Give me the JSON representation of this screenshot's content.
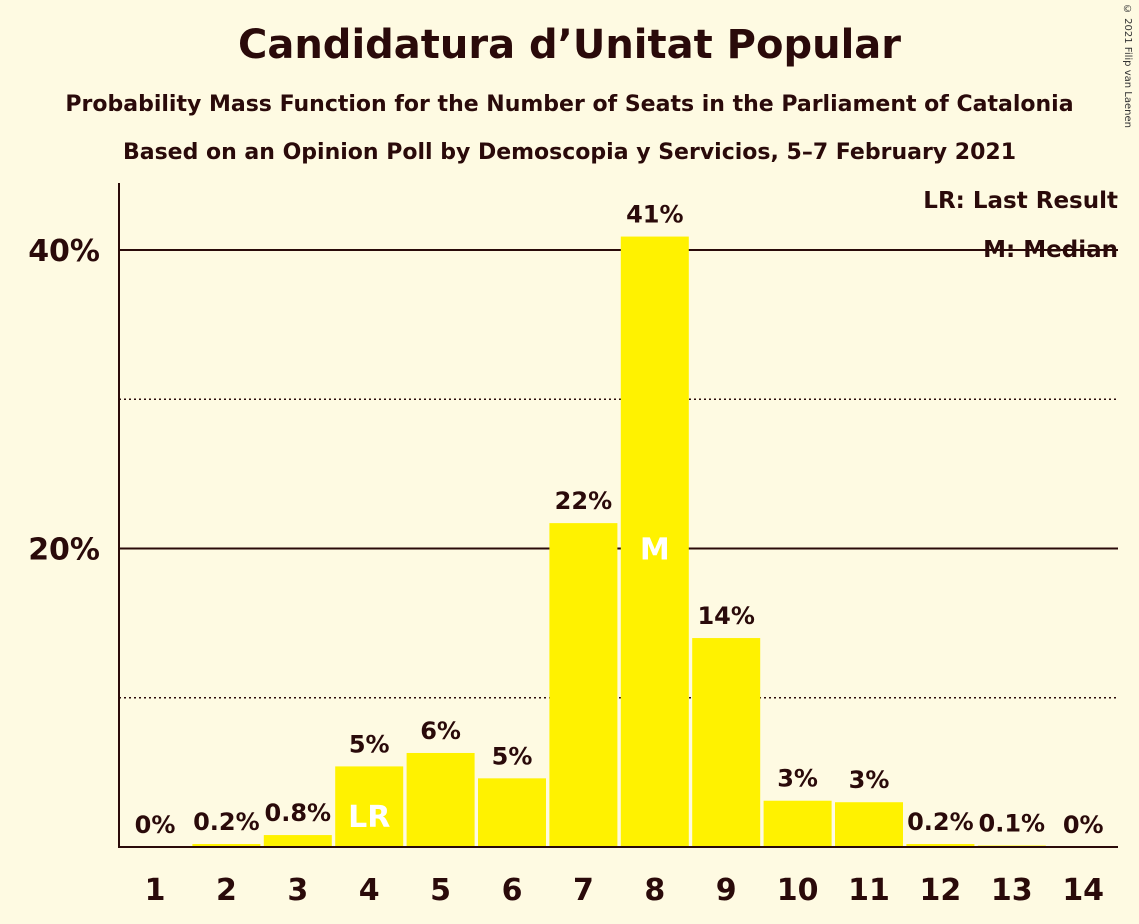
{
  "chart_data": {
    "type": "bar",
    "title": "Candidatura d’Unitat Popular",
    "subtitle": "Probability Mass Function for the Number of Seats in the Parliament of Catalonia",
    "subtitle2": "Based on an Opinion Poll by Demoscopia y Servicios, 5–7 February 2021",
    "copyright": "© 2021 Filip van Laenen",
    "categories": [
      "1",
      "2",
      "3",
      "4",
      "5",
      "6",
      "7",
      "8",
      "9",
      "10",
      "11",
      "12",
      "13",
      "14"
    ],
    "values": [
      0,
      0.2,
      0.8,
      5.4,
      6.3,
      4.6,
      21.7,
      40.9,
      14.0,
      3.1,
      3.0,
      0.2,
      0.1,
      0
    ],
    "value_labels": [
      "0%",
      "0.2%",
      "0.8%",
      "5%",
      "6%",
      "5%",
      "22%",
      "41%",
      "14%",
      "3%",
      "3%",
      "0.2%",
      "0.1%",
      "0%"
    ],
    "ylim": [
      0,
      45
    ],
    "y_ticks": [
      {
        "value": 20,
        "label": "20%"
      },
      {
        "value": 40,
        "label": "40%"
      }
    ],
    "dotted_gridlines": [
      10,
      30
    ],
    "bar_color": "#FFF200",
    "markers": [
      {
        "category": "4",
        "text": "LR"
      },
      {
        "category": "8",
        "text": "M"
      }
    ],
    "legend": [
      "LR: Last Result",
      "M: Median"
    ]
  }
}
